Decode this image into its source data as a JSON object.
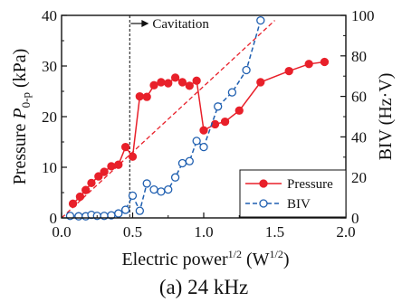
{
  "chart_data": {
    "type": "line",
    "caption": "(a) 24 kHz",
    "x": {
      "label_main": "Electric power",
      "label_sup": "1/2",
      "label_unit_open": " (W",
      "label_unit_sup": "1/2",
      "label_unit_close": ")",
      "lim": [
        0,
        2.0
      ],
      "ticks": [
        "0.0",
        "0.5",
        "1.0",
        "1.5",
        "2.0"
      ],
      "tick_values": [
        0,
        0.5,
        1.0,
        1.5,
        2.0
      ]
    },
    "y_left": {
      "label_main": "Pressure ",
      "label_italic": "P",
      "label_sub": "0-p",
      "label_unit": " (kPa)",
      "lim": [
        0,
        40
      ],
      "ticks": [
        "0",
        "10",
        "20",
        "30",
        "40"
      ],
      "tick_values": [
        0,
        10,
        20,
        30,
        40
      ]
    },
    "y_right": {
      "label": "BIV (Hz·V)",
      "lim": [
        0,
        100
      ],
      "ticks": [
        "0",
        "20",
        "40",
        "60",
        "80",
        "100"
      ],
      "tick_values": [
        0,
        20,
        40,
        60,
        80,
        100
      ]
    },
    "grid": false,
    "legend_position": "bottom-right",
    "annotation": {
      "text": "Cavitation",
      "x": 0.48
    },
    "series": [
      {
        "name": "Pressure",
        "axis": "left",
        "color": "#e8202a",
        "marker": "filled-circle",
        "line": "solid",
        "points": [
          [
            0.08,
            2.8
          ],
          [
            0.13,
            4.2
          ],
          [
            0.17,
            5.5
          ],
          [
            0.21,
            6.9
          ],
          [
            0.26,
            8.2
          ],
          [
            0.3,
            9.1
          ],
          [
            0.35,
            10.2
          ],
          [
            0.4,
            10.5
          ],
          [
            0.45,
            14.0
          ],
          [
            0.5,
            12.1
          ],
          [
            0.55,
            24.0
          ],
          [
            0.6,
            23.9
          ],
          [
            0.65,
            26.2
          ],
          [
            0.7,
            26.8
          ],
          [
            0.75,
            26.6
          ],
          [
            0.8,
            27.7
          ],
          [
            0.85,
            26.8
          ],
          [
            0.9,
            26.1
          ],
          [
            0.95,
            27.1
          ],
          [
            1.0,
            17.3
          ],
          [
            1.08,
            18.5
          ],
          [
            1.15,
            19.0
          ],
          [
            1.25,
            21.2
          ],
          [
            1.4,
            26.8
          ],
          [
            1.6,
            29.0
          ],
          [
            1.74,
            30.4
          ],
          [
            1.85,
            30.8
          ]
        ]
      },
      {
        "name": "BIV",
        "axis": "right",
        "color": "#1f5fb0",
        "marker": "open-circle",
        "line": "dashed",
        "points": [
          [
            0.06,
            1.0
          ],
          [
            0.12,
            0.8
          ],
          [
            0.17,
            0.8
          ],
          [
            0.21,
            1.5
          ],
          [
            0.25,
            1.0
          ],
          [
            0.3,
            1.0
          ],
          [
            0.35,
            1.3
          ],
          [
            0.4,
            2.2
          ],
          [
            0.45,
            4.0
          ],
          [
            0.5,
            11.0
          ],
          [
            0.55,
            3.5
          ],
          [
            0.6,
            17.0
          ],
          [
            0.65,
            14.0
          ],
          [
            0.7,
            13.0
          ],
          [
            0.75,
            14.0
          ],
          [
            0.8,
            20.0
          ],
          [
            0.85,
            27.0
          ],
          [
            0.9,
            28.0
          ],
          [
            0.95,
            38.0
          ],
          [
            1.0,
            35.0
          ],
          [
            1.1,
            55.0
          ],
          [
            1.2,
            62.0
          ],
          [
            1.3,
            73.0
          ],
          [
            1.4,
            97.5
          ]
        ]
      }
    ],
    "trend_lines": [
      {
        "color": "#e8202a",
        "axis": "left",
        "from": [
          0.0,
          0.0
        ],
        "to": [
          1.5,
          39.0
        ]
      }
    ]
  }
}
